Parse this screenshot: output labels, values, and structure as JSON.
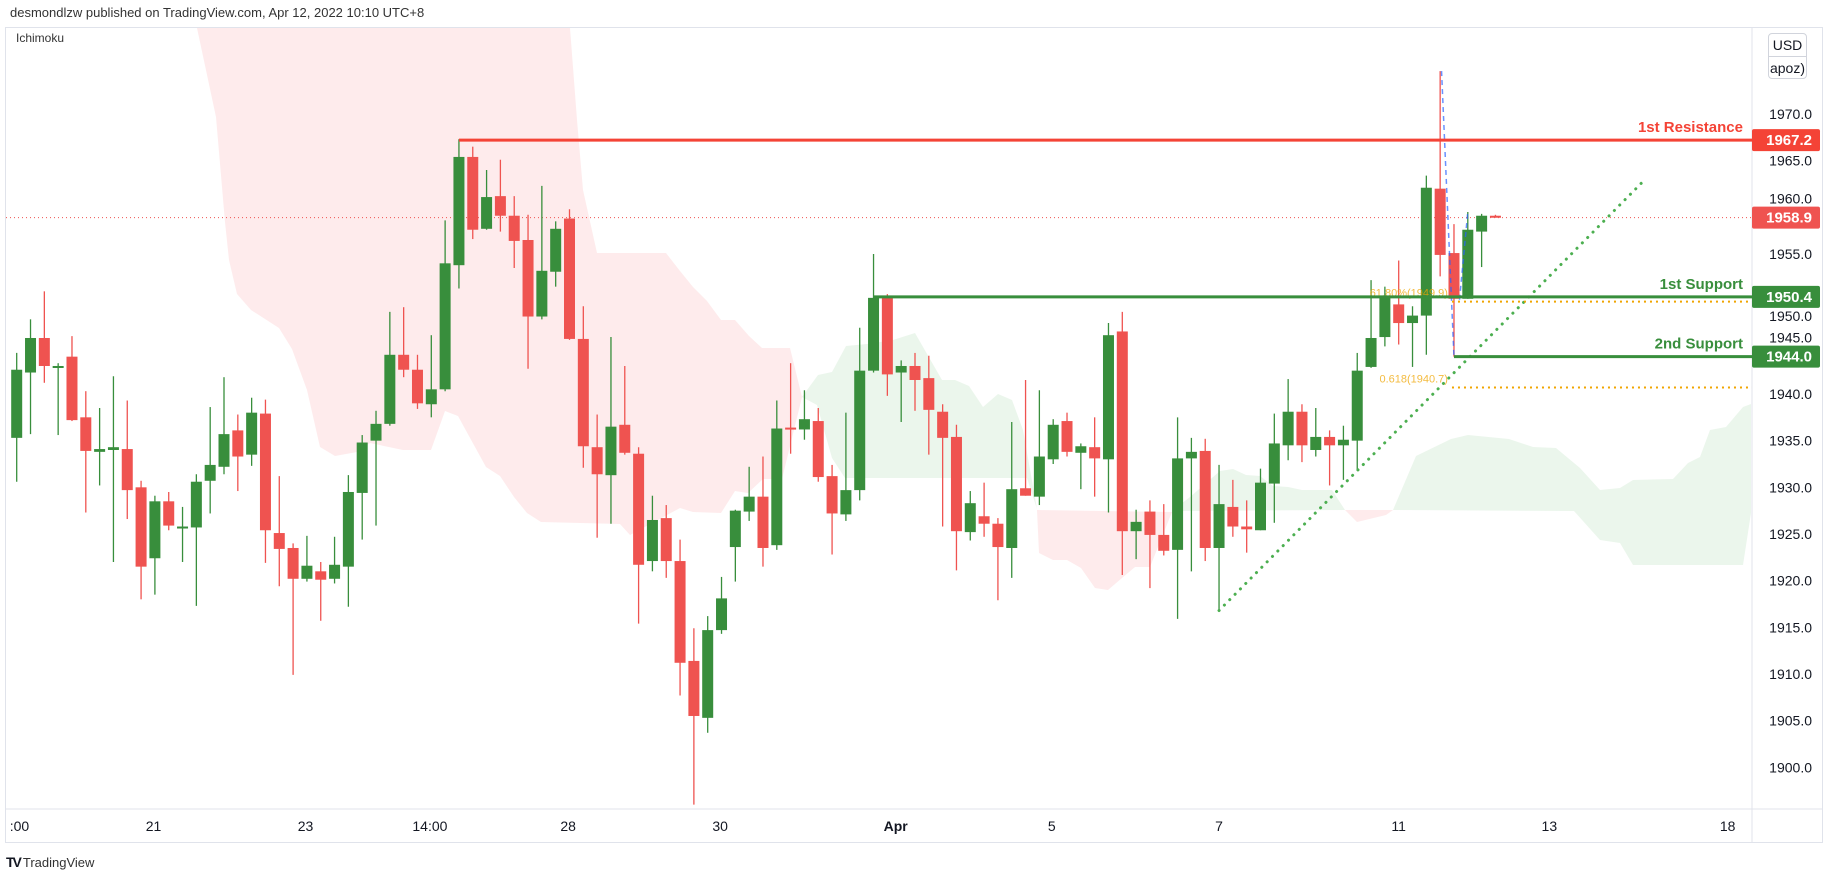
{
  "header": {
    "published": "desmondlzw published on TradingView.com, Apr 12, 2022 10:10 UTC+8"
  },
  "indicator": "Ichimoku",
  "currency": {
    "unit": "USD",
    "sub": "apoz)"
  },
  "footer": {
    "brand": "TradingView"
  },
  "colors": {
    "up": "#388e3c",
    "down": "#ef5350",
    "resistance": "#f44336",
    "support": "#388e3c",
    "fib": "#f0a500",
    "trend": "#4caf50",
    "projection": "#2962ff"
  },
  "chart_data": {
    "type": "candlestick",
    "title": "",
    "ylim": [
      1895.5,
      1979.3
    ],
    "y_ticks": [
      "1970.0",
      "1965.0",
      "1960.0",
      "1955.0",
      "1950.0",
      "1945.0",
      "1940.0",
      "1935.0",
      "1930.0",
      "1925.0",
      "1920.0",
      "1915.0",
      "1910.0",
      "1905.0",
      "1900.0"
    ],
    "x_ticks": [
      {
        "label": ":00",
        "bar": 1.2
      },
      {
        "label": "21",
        "bar": 10.9
      },
      {
        "label": "23",
        "bar": 21.9
      },
      {
        "label": "14:00",
        "bar": 30.9
      },
      {
        "label": "28",
        "bar": 40.9
      },
      {
        "label": "30",
        "bar": 51.9
      },
      {
        "label": "Apr",
        "bar": 64.6,
        "bold": true
      },
      {
        "label": "5",
        "bar": 75.9
      },
      {
        "label": "7",
        "bar": 88.0
      },
      {
        "label": "11",
        "bar": 101.0
      },
      {
        "label": "13",
        "bar": 111.9
      },
      {
        "label": "18",
        "bar": 124.8
      }
    ],
    "candles_ohlc": [
      [
        1935.3,
        1944.4,
        1930.6,
        1942.6
      ],
      [
        1942.3,
        1948.0,
        1935.7,
        1946.0
      ],
      [
        1946.0,
        1951.0,
        1941.2,
        1943.0
      ],
      [
        1942.9,
        1943.3,
        1935.6,
        1943.0
      ],
      [
        1944.0,
        1946.2,
        1937.1,
        1937.2
      ],
      [
        1937.5,
        1940.3,
        1927.3,
        1933.9
      ],
      [
        1933.8,
        1938.5,
        1930.2,
        1934.1
      ],
      [
        1934.0,
        1941.9,
        1922.0,
        1934.3
      ],
      [
        1934.1,
        1939.3,
        1926.6,
        1929.7
      ],
      [
        1930.0,
        1930.7,
        1918.0,
        1921.5
      ],
      [
        1922.4,
        1929.1,
        1918.5,
        1928.5
      ],
      [
        1928.5,
        1929.5,
        1925.4,
        1925.9
      ],
      [
        1925.7,
        1927.9,
        1922.0,
        1925.8
      ],
      [
        1925.7,
        1931.4,
        1917.3,
        1930.6
      ],
      [
        1930.7,
        1938.6,
        1927.2,
        1932.4
      ],
      [
        1932.2,
        1941.8,
        1931.4,
        1935.7
      ],
      [
        1936.1,
        1937.8,
        1929.6,
        1933.3
      ],
      [
        1933.5,
        1939.6,
        1932.3,
        1938.0
      ],
      [
        1937.9,
        1939.4,
        1921.9,
        1925.4
      ],
      [
        1925.1,
        1931.2,
        1919.4,
        1923.4
      ],
      [
        1923.5,
        1924.0,
        1909.9,
        1920.2
      ],
      [
        1920.2,
        1924.8,
        1919.9,
        1921.6
      ],
      [
        1921.0,
        1922.0,
        1915.7,
        1920.1
      ],
      [
        1920.2,
        1924.7,
        1919.7,
        1921.7
      ],
      [
        1921.5,
        1931.3,
        1917.2,
        1929.5
      ],
      [
        1929.4,
        1935.6,
        1924.4,
        1934.8
      ],
      [
        1935.0,
        1938.2,
        1925.9,
        1936.8
      ],
      [
        1936.8,
        1948.8,
        1936.6,
        1944.2
      ],
      [
        1944.2,
        1949.3,
        1941.8,
        1942.6
      ],
      [
        1942.6,
        1944.2,
        1938.4,
        1939.0
      ],
      [
        1938.9,
        1946.3,
        1937.5,
        1940.5
      ],
      [
        1940.5,
        1958.6,
        1940.3,
        1954.0
      ],
      [
        1953.8,
        1967.3,
        1951.3,
        1965.4
      ],
      [
        1965.4,
        1966.5,
        1956.6,
        1957.6
      ],
      [
        1957.7,
        1964.0,
        1957.6,
        1961.1
      ],
      [
        1961.2,
        1965.1,
        1957.4,
        1959.1
      ],
      [
        1959.1,
        1961.2,
        1953.5,
        1956.4
      ],
      [
        1956.5,
        1959.2,
        1942.7,
        1948.3
      ],
      [
        1948.3,
        1962.3,
        1948.0,
        1953.2
      ],
      [
        1953.1,
        1958.5,
        1951.5,
        1957.7
      ],
      [
        1958.8,
        1959.8,
        1945.8,
        1945.9
      ],
      [
        1945.9,
        1949.4,
        1932.1,
        1934.4
      ],
      [
        1934.3,
        1937.8,
        1924.6,
        1931.4
      ],
      [
        1931.3,
        1946.1,
        1926.1,
        1936.5
      ],
      [
        1936.7,
        1943.0,
        1933.5,
        1933.7
      ],
      [
        1933.6,
        1934.3,
        1915.4,
        1921.7
      ],
      [
        1922.1,
        1929.1,
        1921.0,
        1926.5
      ],
      [
        1926.7,
        1928.1,
        1920.3,
        1922.1
      ],
      [
        1922.1,
        1924.4,
        1907.7,
        1911.2
      ],
      [
        1911.4,
        1914.9,
        1896.0,
        1905.5
      ],
      [
        1905.3,
        1916.2,
        1903.7,
        1914.7
      ],
      [
        1914.7,
        1920.4,
        1914.3,
        1918.1
      ],
      [
        1923.6,
        1927.6,
        1919.9,
        1927.5
      ],
      [
        1927.4,
        1932.2,
        1926.4,
        1929.0
      ],
      [
        1929.0,
        1933.3,
        1921.5,
        1923.5
      ],
      [
        1923.8,
        1939.3,
        1923.3,
        1936.3
      ],
      [
        1936.4,
        1943.3,
        1933.6,
        1936.2
      ],
      [
        1936.2,
        1940.4,
        1935.1,
        1937.3
      ],
      [
        1937.1,
        1938.5,
        1930.6,
        1931.1
      ],
      [
        1931.2,
        1932.4,
        1922.8,
        1927.2
      ],
      [
        1927.1,
        1938.0,
        1926.4,
        1929.7
      ],
      [
        1929.7,
        1947.1,
        1928.6,
        1942.5
      ],
      [
        1942.5,
        1955.0,
        1942.3,
        1950.3
      ],
      [
        1950.3,
        1950.7,
        1939.8,
        1942.1
      ],
      [
        1942.3,
        1943.6,
        1937.0,
        1943.0
      ],
      [
        1943.0,
        1944.4,
        1938.2,
        1941.5
      ],
      [
        1941.7,
        1944.1,
        1933.5,
        1938.3
      ],
      [
        1938.1,
        1938.9,
        1925.8,
        1935.3
      ],
      [
        1935.4,
        1936.7,
        1921.1,
        1925.3
      ],
      [
        1925.2,
        1929.6,
        1924.3,
        1928.3
      ],
      [
        1926.9,
        1930.5,
        1924.7,
        1926.1
      ],
      [
        1926.1,
        1926.7,
        1917.9,
        1923.6
      ],
      [
        1923.5,
        1937.0,
        1920.3,
        1929.8
      ],
      [
        1929.9,
        1941.5,
        1929.1,
        1929.1
      ],
      [
        1929.0,
        1940.4,
        1928.1,
        1933.3
      ],
      [
        1933.0,
        1937.3,
        1932.5,
        1936.7
      ],
      [
        1937.1,
        1938.0,
        1933.3,
        1933.8
      ],
      [
        1933.7,
        1934.7,
        1929.8,
        1934.4
      ],
      [
        1934.3,
        1937.5,
        1929.0,
        1933.1
      ],
      [
        1933.0,
        1947.6,
        1927.3,
        1946.3
      ],
      [
        1946.7,
        1948.8,
        1920.6,
        1925.3
      ],
      [
        1925.3,
        1927.6,
        1922.3,
        1926.3
      ],
      [
        1927.4,
        1928.6,
        1919.2,
        1924.9
      ],
      [
        1924.9,
        1928.2,
        1922.7,
        1923.2
      ],
      [
        1923.3,
        1937.5,
        1915.9,
        1933.1
      ],
      [
        1933.1,
        1935.3,
        1921.0,
        1933.8
      ],
      [
        1933.9,
        1935.2,
        1922.1,
        1923.5
      ],
      [
        1923.5,
        1932.4,
        1916.8,
        1928.2
      ],
      [
        1927.9,
        1930.8,
        1924.7,
        1925.8
      ],
      [
        1925.8,
        1928.6,
        1923.0,
        1925.5
      ],
      [
        1925.4,
        1932.0,
        1925.4,
        1930.5
      ],
      [
        1930.4,
        1937.9,
        1926.2,
        1934.7
      ],
      [
        1934.5,
        1941.6,
        1932.9,
        1938.1
      ],
      [
        1938.1,
        1938.9,
        1932.7,
        1934.5
      ],
      [
        1934.0,
        1938.5,
        1933.3,
        1935.4
      ],
      [
        1935.4,
        1936.1,
        1930.2,
        1934.5
      ],
      [
        1934.5,
        1936.6,
        1930.8,
        1935.1
      ],
      [
        1935.0,
        1944.4,
        1931.9,
        1942.5
      ],
      [
        1942.9,
        1952.2,
        1942.8,
        1946.0
      ],
      [
        1946.1,
        1951.5,
        1945.1,
        1950.4
      ],
      [
        1949.6,
        1954.3,
        1945.3,
        1947.6
      ],
      [
        1947.6,
        1949.4,
        1942.9,
        1948.4
      ],
      [
        1948.4,
        1963.4,
        1944.2,
        1962.1
      ],
      [
        1962.0,
        1974.6,
        1952.6,
        1954.9
      ],
      [
        1955.1,
        1958.2,
        1944.0,
        1950.2
      ],
      [
        1950.2,
        1959.5,
        1950.2,
        1957.6
      ],
      [
        1957.4,
        1959.3,
        1953.6,
        1959.1
      ],
      [
        1959.1,
        1959.2,
        1958.9,
        1958.9
      ]
    ],
    "levels": [
      {
        "label": "1st Resistance",
        "price": 1967.2,
        "badge": "1967.2",
        "from_bar": 33,
        "kind": "resistance"
      },
      {
        "label": "1st Support",
        "price": 1950.4,
        "badge": "1950.4",
        "from_bar": 63,
        "kind": "support"
      },
      {
        "label": "2nd Support",
        "price": 1944.0,
        "badge": "1944.0",
        "from_bar": 105,
        "kind": "support"
      }
    ],
    "last_price": {
      "price": 1958.9,
      "badge": "1958.9"
    },
    "fib_levels": [
      {
        "label": "61.80%(1949.9)",
        "price": 1949.9,
        "from_bar": 105
      },
      {
        "label": "0.618(1940.7)",
        "price": 1940.7,
        "from_bar": 105
      }
    ],
    "trendline": {
      "start": {
        "bar": 88.0,
        "price": 1916.8
      },
      "end": {
        "bar": 118.9,
        "price": 1963.1
      }
    },
    "projection": [
      {
        "bar": 104.1,
        "price": 1974.6
      },
      {
        "bar": 105.0,
        "price": 1944.0
      },
      {
        "bar": 105.4,
        "price": 1950.1
      },
      {
        "bar": 106.0,
        "price": 1959.5
      }
    ]
  }
}
